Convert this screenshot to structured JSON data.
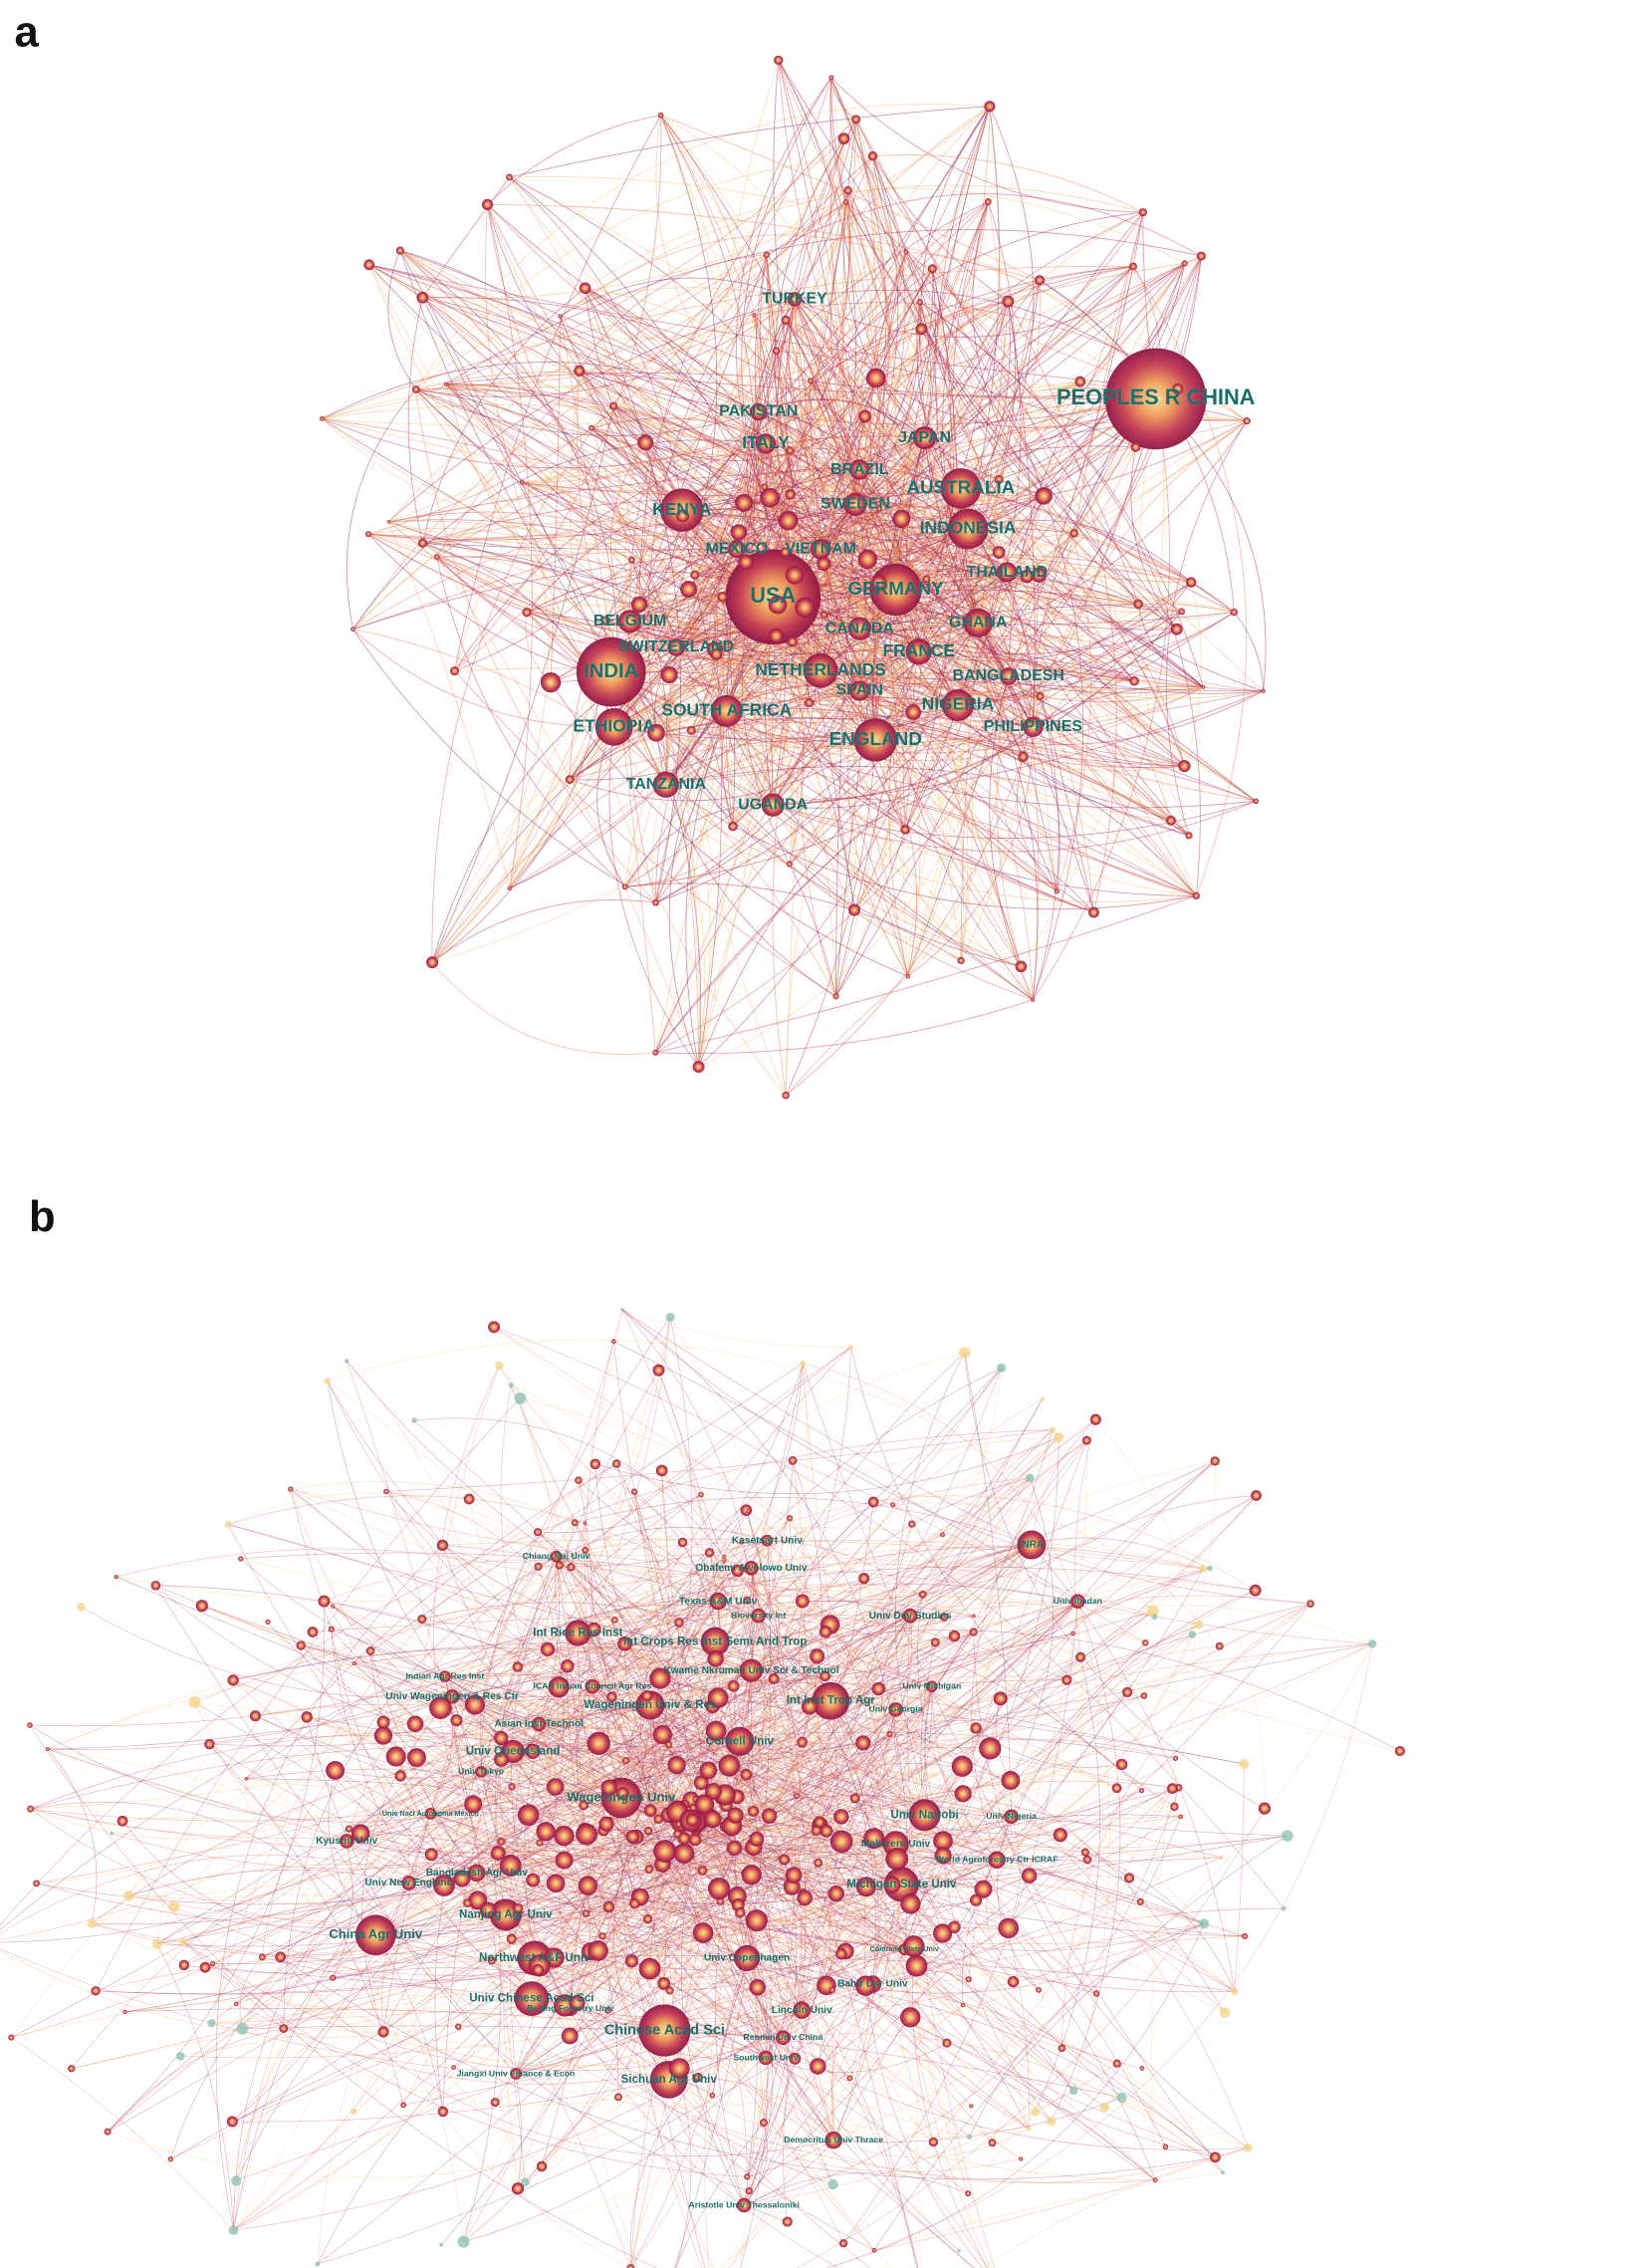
{
  "panel_a": {
    "label": "a",
    "nodes": [
      {
        "label": "PEOPLES R CHINA"
      },
      {
        "label": "USA"
      },
      {
        "label": "INDIA"
      },
      {
        "label": "TURKEY"
      },
      {
        "label": "PAKISTAN"
      },
      {
        "label": "ITALY"
      },
      {
        "label": "JAPAN"
      },
      {
        "label": "BRAZIL"
      },
      {
        "label": "AUSTRALIA"
      },
      {
        "label": "KENYA"
      },
      {
        "label": "SWEDEN"
      },
      {
        "label": "INDONESIA"
      },
      {
        "label": "MEXICO"
      },
      {
        "label": "VIETNAM"
      },
      {
        "label": "THAILAND"
      },
      {
        "label": "GERMANY"
      },
      {
        "label": "BELGIUM"
      },
      {
        "label": "CANADA"
      },
      {
        "label": "GHANA"
      },
      {
        "label": "SWITZERLAND"
      },
      {
        "label": "FRANCE"
      },
      {
        "label": "NETHERLANDS"
      },
      {
        "label": "BANGLADESH"
      },
      {
        "label": "SPAIN"
      },
      {
        "label": "SOUTH AFRICA"
      },
      {
        "label": "NIGERIA"
      },
      {
        "label": "ETHIOPIA"
      },
      {
        "label": "PHILIPPINES"
      },
      {
        "label": "ENGLAND"
      },
      {
        "label": "TANZANIA"
      },
      {
        "label": "UGANDA"
      }
    ]
  },
  "panel_b": {
    "label": "b",
    "nodes": [
      {
        "label": "Kasetsart Univ"
      },
      {
        "label": "INRA"
      },
      {
        "label": "Chiang Mai Univ"
      },
      {
        "label": "Obafemi Awolowo Univ"
      },
      {
        "label": "Texas A&M Univ"
      },
      {
        "label": "Univ Ibadan"
      },
      {
        "label": "Bioversity Int"
      },
      {
        "label": "Univ Dev Studies"
      },
      {
        "label": "Int Rice Res Inst"
      },
      {
        "label": "Int Crops Res Inst Semi Arid Trop"
      },
      {
        "label": "Indian Agr Res Inst"
      },
      {
        "label": "Kwame Nkrumah Univ Sci & Technol"
      },
      {
        "label": "Univ Michigan"
      },
      {
        "label": "Univ Wageningen & Res Ctr"
      },
      {
        "label": "ICAR Indian Council Agr Res"
      },
      {
        "label": "Int Inst Trop Agr"
      },
      {
        "label": "Univ Georgia"
      },
      {
        "label": "Asian Inst Technol"
      },
      {
        "label": "Wageningen Univ & Res"
      },
      {
        "label": "Univ Queensland"
      },
      {
        "label": "Cornell Univ"
      },
      {
        "label": "Univ Tokyo"
      },
      {
        "label": "Wageningen Univ"
      },
      {
        "label": "Univ Nacl Autonoma Mexico"
      },
      {
        "label": "Univ Nairobi"
      },
      {
        "label": "Univ Nigeria"
      },
      {
        "label": "Kyushu Univ"
      },
      {
        "label": "Makerere Univ"
      },
      {
        "label": "Univ New England"
      },
      {
        "label": "Bangladesh Agr Univ"
      },
      {
        "label": "Michigan State Univ"
      },
      {
        "label": "World Agroforestry Ctr ICRAF"
      },
      {
        "label": "China Agr Univ"
      },
      {
        "label": "Nanjing Agr Univ"
      },
      {
        "label": "Northwest A&F Univ"
      },
      {
        "label": "Univ Copenhagen"
      },
      {
        "label": "Colorado State Univ"
      },
      {
        "label": "Bahir Dar Univ"
      },
      {
        "label": "Univ Chinese Acad Sci"
      },
      {
        "label": "Beijing Forestry Univ"
      },
      {
        "label": "Chinese Acad Sci"
      },
      {
        "label": "Lincoln Univ"
      },
      {
        "label": "Renmin Univ China"
      },
      {
        "label": "Southwest Univ"
      },
      {
        "label": "Sichuan Agr Univ"
      },
      {
        "label": "Jiangxi Univ Finance & Econ"
      },
      {
        "label": "Democritus Univ Thrace"
      },
      {
        "label": "Aristotle Univ Thessaloniki"
      }
    ]
  }
}
